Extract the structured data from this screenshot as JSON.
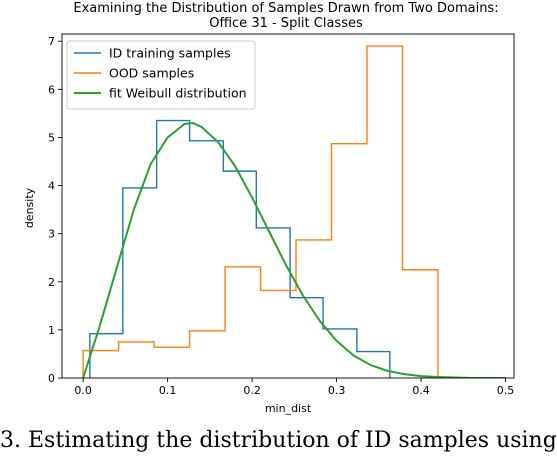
{
  "chart_data": {
    "type": "histogram",
    "title_lines": [
      "Examining the Distribution of Samples Drawn from Two Domains:",
      "Office 31 - Split Classes"
    ],
    "xlabel": "min_dist",
    "ylabel": "density",
    "xlim": [
      -0.025,
      0.51
    ],
    "ylim": [
      0,
      7.15
    ],
    "xticks": [
      0.0,
      0.1,
      0.2,
      0.3,
      0.4,
      0.5
    ],
    "xtick_labels": [
      "0.0",
      "0.1",
      "0.2",
      "0.3",
      "0.4",
      "0.5"
    ],
    "yticks": [
      0,
      1,
      2,
      3,
      4,
      5,
      6,
      7
    ],
    "ytick_labels": [
      "0",
      "1",
      "2",
      "3",
      "4",
      "5",
      "6",
      "7"
    ],
    "legend_position": "upper left",
    "series": [
      {
        "name": "ID training samples",
        "kind": "step-histogram",
        "color": "#1f77b4",
        "bin_edges": [
          0.008,
          0.047,
          0.087,
          0.126,
          0.166,
          0.205,
          0.245,
          0.284,
          0.324,
          0.363
        ],
        "values": [
          0.92,
          3.95,
          5.35,
          4.93,
          4.3,
          3.12,
          1.67,
          1.02,
          0.55
        ]
      },
      {
        "name": "OOD samples",
        "kind": "step-histogram",
        "color": "#ff7f0e",
        "bin_edges": [
          0.0,
          0.042,
          0.084,
          0.126,
          0.168,
          0.21,
          0.252,
          0.294,
          0.336,
          0.378,
          0.42
        ],
        "values": [
          0.57,
          0.75,
          0.64,
          0.98,
          2.31,
          1.82,
          2.87,
          4.87,
          6.9,
          2.25
        ]
      },
      {
        "name": "fit Weibull distribution",
        "kind": "line",
        "color": "#2ca02c",
        "x": [
          0.0,
          0.02,
          0.04,
          0.06,
          0.08,
          0.1,
          0.12,
          0.13,
          0.14,
          0.16,
          0.18,
          0.2,
          0.22,
          0.24,
          0.26,
          0.28,
          0.3,
          0.32,
          0.34,
          0.36,
          0.38,
          0.4,
          0.42,
          0.44,
          0.46,
          0.48,
          0.5
        ],
        "y": [
          0.0,
          1.1,
          2.3,
          3.5,
          4.45,
          5.0,
          5.28,
          5.3,
          5.22,
          4.9,
          4.4,
          3.75,
          3.05,
          2.35,
          1.72,
          1.19,
          0.77,
          0.47,
          0.27,
          0.15,
          0.08,
          0.04,
          0.02,
          0.01,
          0.0,
          0.0,
          0.0
        ]
      }
    ]
  },
  "caption_text": "3. Estimating the distribution of ID samples using"
}
